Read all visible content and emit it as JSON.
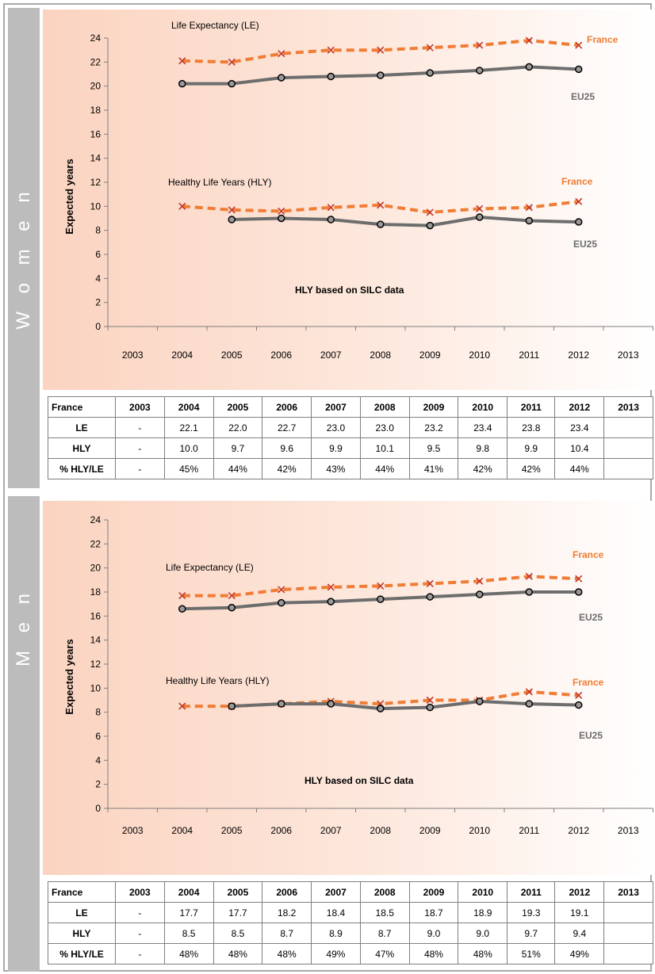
{
  "charts": [
    {
      "key": "women",
      "side_label": "W o m e n",
      "chart_data": {
        "type": "line",
        "ylabel": "Expected years",
        "ylim": [
          0,
          24
        ],
        "yticks": [
          0,
          2,
          4,
          6,
          8,
          10,
          12,
          14,
          16,
          18,
          20,
          22,
          24
        ],
        "categories": [
          "2003",
          "2004",
          "2005",
          "2006",
          "2007",
          "2008",
          "2009",
          "2010",
          "2011",
          "2012",
          "2013"
        ],
        "annotations": {
          "le_label": "Life Expectancy (LE)",
          "hly_label": "Healthy Life Years (HLY)",
          "note": "HLY based on SILC data",
          "france_le": "France",
          "eu_le": "EU25",
          "france_hly": "France",
          "eu_hly": "EU25"
        },
        "series": [
          {
            "id": "france_le",
            "name": "France",
            "color": "#f07c35",
            "style": "dashed",
            "marker": "x",
            "values": [
              null,
              22.1,
              22.0,
              22.7,
              23.0,
              23.0,
              23.2,
              23.4,
              23.8,
              23.4,
              null
            ]
          },
          {
            "id": "eu_le",
            "name": "EU25",
            "color": "#6d6d6d",
            "style": "solid",
            "marker": "o",
            "values": [
              null,
              20.2,
              20.2,
              20.7,
              20.8,
              20.9,
              21.1,
              21.3,
              21.6,
              21.4,
              null
            ]
          },
          {
            "id": "france_hly",
            "name": "France",
            "color": "#f07c35",
            "style": "dashed",
            "marker": "x",
            "values": [
              null,
              10.0,
              9.7,
              9.6,
              9.9,
              10.1,
              9.5,
              9.8,
              9.9,
              10.4,
              null
            ]
          },
          {
            "id": "eu_hly",
            "name": "EU25",
            "color": "#6d6d6d",
            "style": "solid",
            "marker": "o",
            "values": [
              null,
              null,
              8.9,
              9.0,
              8.9,
              8.5,
              8.4,
              9.1,
              8.8,
              8.7,
              null
            ]
          }
        ]
      },
      "table": {
        "header": [
          "France",
          "2003",
          "2004",
          "2005",
          "2006",
          "2007",
          "2008",
          "2009",
          "2010",
          "2011",
          "2012",
          "2013"
        ],
        "rows": [
          [
            "LE",
            "-",
            "22.1",
            "22.0",
            "22.7",
            "23.0",
            "23.0",
            "23.2",
            "23.4",
            "23.8",
            "23.4",
            ""
          ],
          [
            "HLY",
            "-",
            "10.0",
            "9.7",
            "9.6",
            "9.9",
            "10.1",
            "9.5",
            "9.8",
            "9.9",
            "10.4",
            ""
          ],
          [
            "% HLY/LE",
            "-",
            "45%",
            "44%",
            "42%",
            "43%",
            "44%",
            "41%",
            "42%",
            "42%",
            "44%",
            ""
          ]
        ]
      }
    },
    {
      "key": "men",
      "side_label": "M e n",
      "chart_data": {
        "type": "line",
        "ylabel": "Expected years",
        "ylim": [
          0,
          24
        ],
        "yticks": [
          0,
          2,
          4,
          6,
          8,
          10,
          12,
          14,
          16,
          18,
          20,
          22,
          24
        ],
        "categories": [
          "2003",
          "2004",
          "2005",
          "2006",
          "2007",
          "2008",
          "2009",
          "2010",
          "2011",
          "2012",
          "2013"
        ],
        "annotations": {
          "le_label": "Life Expectancy (LE)",
          "hly_label": "Healthy Life Years (HLY)",
          "note": "HLY based on SILC data",
          "france_le": "France",
          "eu_le": "EU25",
          "france_hly": "France",
          "eu_hly": "EU25"
        },
        "series": [
          {
            "id": "france_le",
            "name": "France",
            "color": "#f07c35",
            "style": "dashed",
            "marker": "x",
            "values": [
              null,
              17.7,
              17.7,
              18.2,
              18.4,
              18.5,
              18.7,
              18.9,
              19.3,
              19.1,
              null
            ]
          },
          {
            "id": "eu_le",
            "name": "EU25",
            "color": "#6d6d6d",
            "style": "solid",
            "marker": "o",
            "values": [
              null,
              16.6,
              16.7,
              17.1,
              17.2,
              17.4,
              17.6,
              17.8,
              18.0,
              18.0,
              null
            ]
          },
          {
            "id": "france_hly",
            "name": "France",
            "color": "#f07c35",
            "style": "dashed",
            "marker": "x",
            "values": [
              null,
              8.5,
              8.5,
              8.7,
              8.9,
              8.7,
              9.0,
              9.0,
              9.7,
              9.4,
              null
            ]
          },
          {
            "id": "eu_hly",
            "name": "EU25",
            "color": "#6d6d6d",
            "style": "solid",
            "marker": "o",
            "values": [
              null,
              null,
              8.5,
              8.7,
              8.7,
              8.3,
              8.4,
              8.9,
              8.7,
              8.6,
              null
            ]
          }
        ]
      },
      "table": {
        "header": [
          "France",
          "2003",
          "2004",
          "2005",
          "2006",
          "2007",
          "2008",
          "2009",
          "2010",
          "2011",
          "2012",
          "2013"
        ],
        "rows": [
          [
            "LE",
            "-",
            "17.7",
            "17.7",
            "18.2",
            "18.4",
            "18.5",
            "18.7",
            "18.9",
            "19.3",
            "19.1",
            ""
          ],
          [
            "HLY",
            "-",
            "8.5",
            "8.5",
            "8.7",
            "8.9",
            "8.7",
            "9.0",
            "9.0",
            "9.7",
            "9.4",
            ""
          ],
          [
            "% HLY/LE",
            "-",
            "48%",
            "48%",
            "48%",
            "49%",
            "47%",
            "48%",
            "48%",
            "51%",
            "49%",
            ""
          ]
        ]
      }
    }
  ]
}
